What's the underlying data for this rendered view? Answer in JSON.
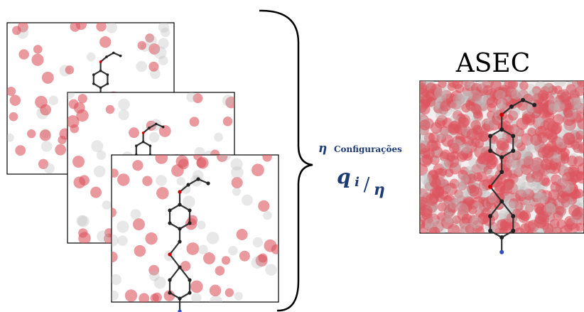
{
  "asec_label": "ASEC",
  "config_label": {
    "symbol": "η",
    "text": "Configurações"
  },
  "charge_formula": {
    "numerator": "q",
    "subscript": "i",
    "separator": "/",
    "denominator": "η"
  }
}
